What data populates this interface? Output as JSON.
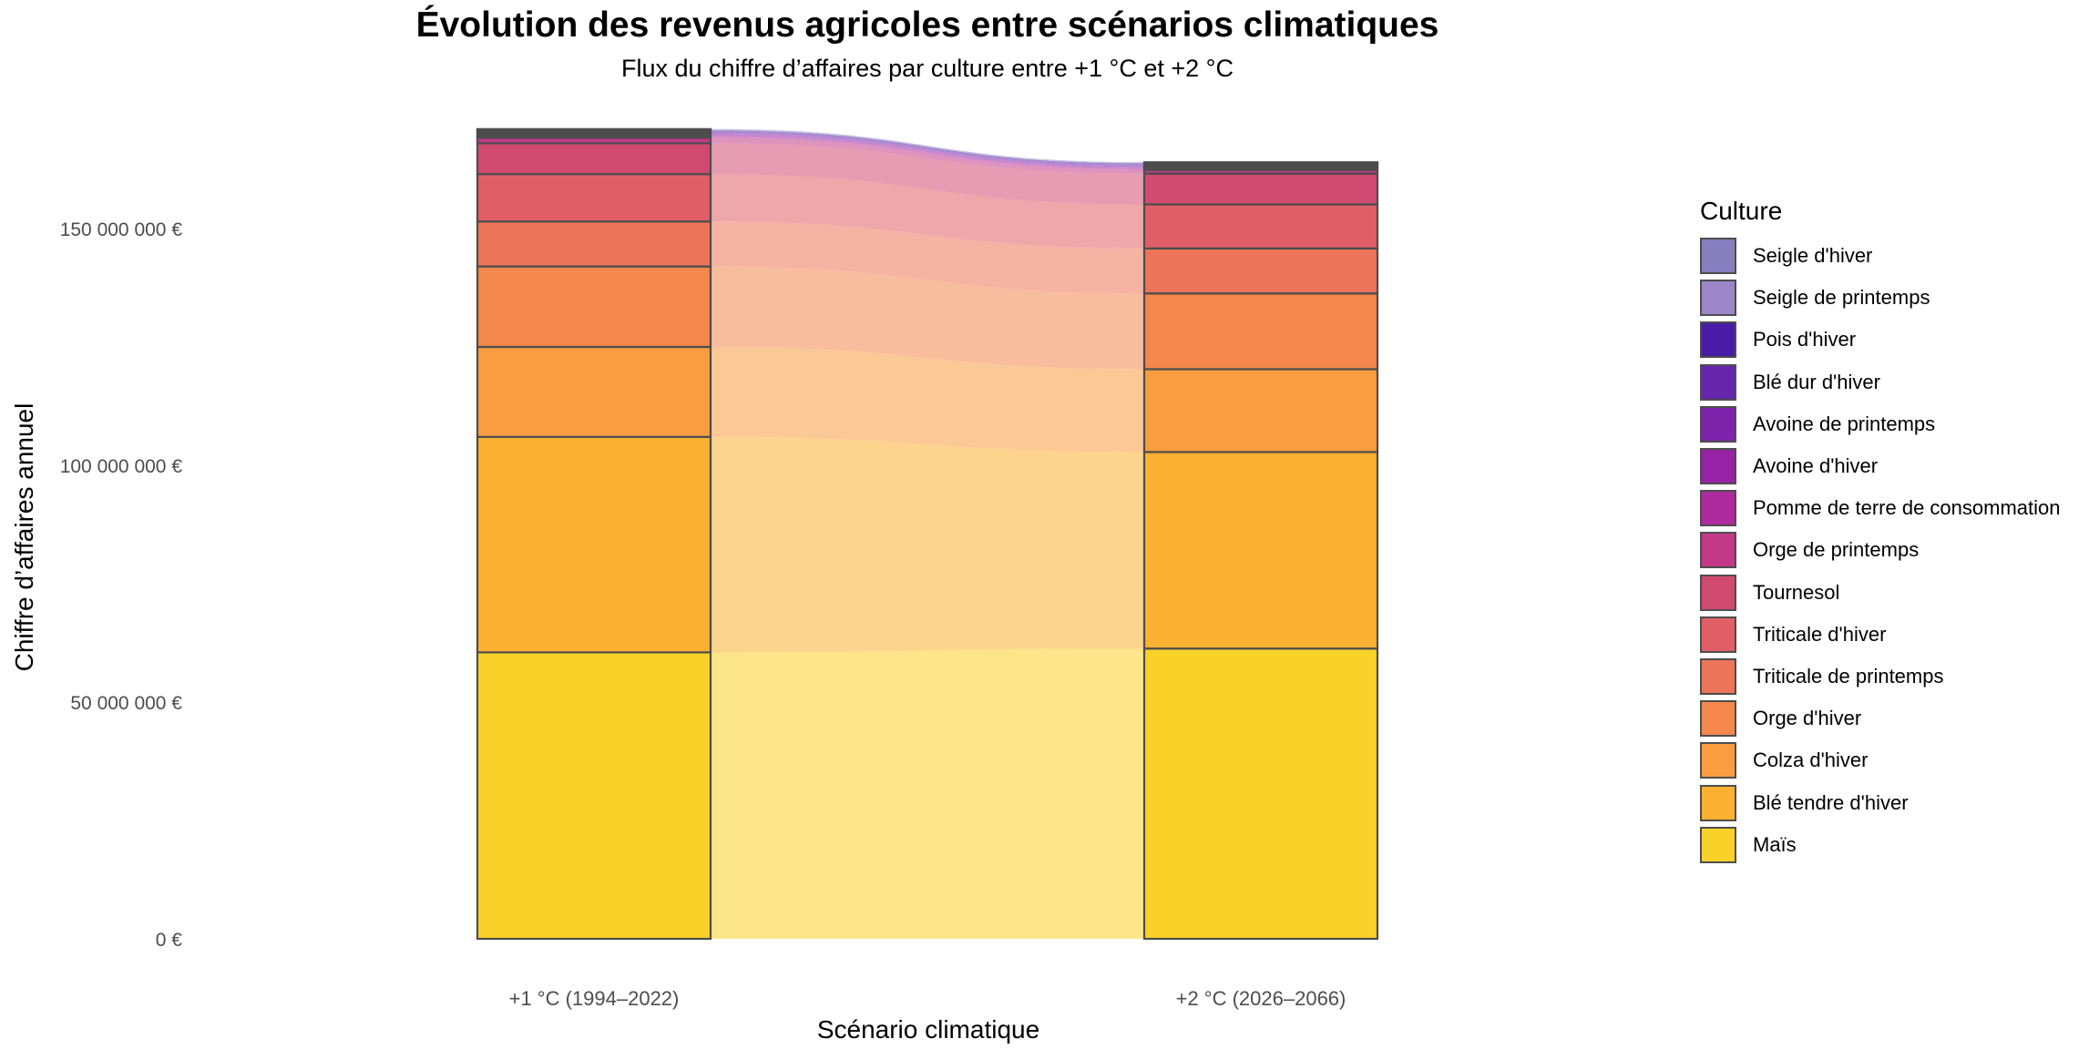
{
  "chart_data": {
    "type": "alluvial",
    "title": "Évolution des revenus agricoles entre scénarios climatiques",
    "subtitle": "Flux du chiffre d’affaires par culture entre +1 °C et +2 °C",
    "xlabel": "Scénario climatique",
    "ylabel": "Chiffre d’affaires annuel",
    "ylim": [
      0,
      175000000
    ],
    "yticks": [
      0,
      50000000,
      100000000,
      150000000
    ],
    "ytick_labels": [
      "0 €",
      "50 000 000 €",
      "100 000 000 €",
      "150 000 000 €"
    ],
    "categories": [
      "+1 °C (1994–2022)",
      "+2 °C (2026–2066)"
    ],
    "legend_title": "Culture",
    "series": [
      {
        "name": "Seigle d'hiver",
        "color": "#8580bd",
        "values": [
          200000,
          150000
        ]
      },
      {
        "name": "Seigle de printemps",
        "color": "#9a86c8",
        "values": [
          100000,
          100000
        ]
      },
      {
        "name": "Pois d'hiver",
        "color": "#4a1ba6",
        "values": [
          200000,
          200000
        ]
      },
      {
        "name": "Blé dur d'hiver",
        "color": "#6625ad",
        "values": [
          300000,
          250000
        ]
      },
      {
        "name": "Avoine de printemps",
        "color": "#7e24ab",
        "values": [
          300000,
          300000
        ]
      },
      {
        "name": "Avoine d'hiver",
        "color": "#9722a5",
        "values": [
          400000,
          300000
        ]
      },
      {
        "name": "Pomme de terre de consommation",
        "color": "#ae2a9f",
        "values": [
          300000,
          300000
        ]
      },
      {
        "name": "Orge de printemps",
        "color": "#c23a87",
        "values": [
          1200000,
          800000
        ]
      },
      {
        "name": "Tournesol",
        "color": "#d14a72",
        "values": [
          6500000,
          6500000
        ]
      },
      {
        "name": "Triticale d'hiver",
        "color": "#e05f66",
        "values": [
          10000000,
          9300000
        ]
      },
      {
        "name": "Triticale de printemps",
        "color": "#ec7459",
        "values": [
          9500000,
          9500000
        ]
      },
      {
        "name": "Orge d'hiver",
        "color": "#f3874c",
        "values": [
          17000000,
          16000000
        ]
      },
      {
        "name": "Colza d'hiver",
        "color": "#f99d40",
        "values": [
          19000000,
          17500000
        ]
      },
      {
        "name": "Blé tendre d'hiver",
        "color": "#fcb132",
        "values": [
          45500000,
          41500000
        ]
      },
      {
        "name": "Maïs",
        "color": "#fad128",
        "values": [
          60500000,
          61300000
        ]
      }
    ]
  }
}
